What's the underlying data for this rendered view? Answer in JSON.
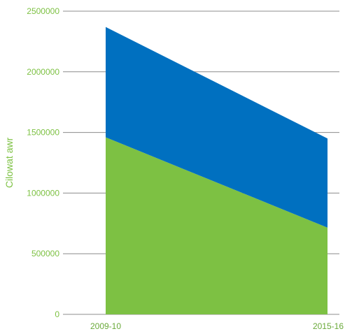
{
  "chart_data": {
    "type": "area",
    "stacked": true,
    "categories": [
      "2009-10",
      "2015-16"
    ],
    "series": [
      {
        "values": [
          1460000,
          715000
        ],
        "color": "#7dc143"
      },
      {
        "values": [
          910000,
          735000
        ],
        "color": "#0070c0"
      }
    ],
    "ylabel": "Cilowat awr",
    "ylim": [
      0,
      2500000
    ],
    "yticks": [
      "0",
      "500000",
      "1000000",
      "1500000",
      "2000000",
      "2500000"
    ],
    "grid": true,
    "legend": "none"
  },
  "colors": {
    "axis_text": "#7dc143",
    "x_tick_text": "#6aaa3a",
    "grid": "#8c8c8c"
  }
}
